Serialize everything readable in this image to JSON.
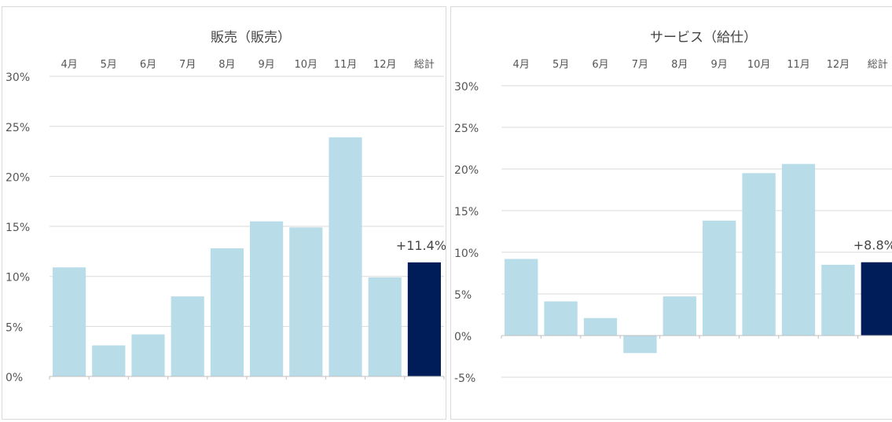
{
  "chart_data": [
    {
      "type": "bar",
      "title": "販売（販売）",
      "categories": [
        "4月",
        "5月",
        "6月",
        "7月",
        "8月",
        "9月",
        "10月",
        "11月",
        "12月",
        "総計"
      ],
      "values": [
        10.9,
        3.1,
        4.2,
        8.0,
        12.8,
        15.5,
        14.9,
        23.9,
        9.9,
        11.4
      ],
      "ylim": [
        0,
        30
      ],
      "yticks": [
        "30%",
        "25%",
        "20%",
        "15%",
        "10%",
        "5%",
        "0%"
      ],
      "total_label": "+11.4%",
      "grid": true,
      "colors": {
        "bar": "#b8dde8",
        "total": "#001d5a",
        "grid": "#d9d9d9"
      }
    },
    {
      "type": "bar",
      "title": "サービス（給仕）",
      "categories": [
        "4月",
        "5月",
        "6月",
        "7月",
        "8月",
        "9月",
        "10月",
        "11月",
        "12月",
        "総計"
      ],
      "values": [
        9.2,
        4.1,
        2.1,
        -2.1,
        4.7,
        13.8,
        19.5,
        20.6,
        8.5,
        8.8
      ],
      "ylim": [
        -5,
        30
      ],
      "yticks": [
        "30%",
        "25%",
        "20%",
        "15%",
        "10%",
        "5%",
        "0%",
        "-5%"
      ],
      "total_label": "+8.8%",
      "grid": true,
      "colors": {
        "bar": "#b8dde8",
        "total": "#001d5a",
        "grid": "#d9d9d9"
      }
    }
  ]
}
